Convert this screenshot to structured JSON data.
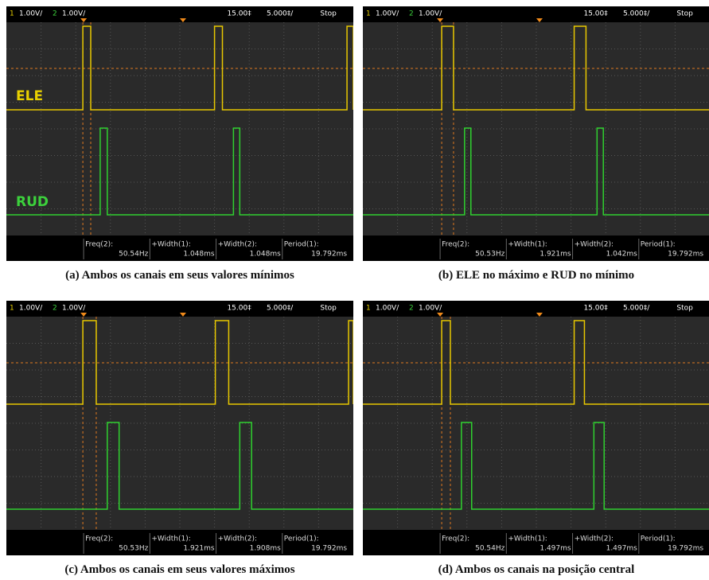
{
  "panels": [
    {
      "header": {
        "ch1": "1",
        "ch1_scale": "1.00V/",
        "ch2": "2",
        "ch2_scale": "1.00V/",
        "delay": "15.00‡",
        "timebase": "5.000‡/",
        "status": "Stop"
      },
      "labels": [
        "ELE",
        "RUD"
      ],
      "measurements": [
        {
          "label": "Freq(2):",
          "value": "50.54Hz"
        },
        {
          "label": "+Width(1):",
          "value": "1.048ms"
        },
        {
          "label": "+Width(2):",
          "value": "1.048ms"
        },
        {
          "label": "Period(1):",
          "value": "19.792ms"
        }
      ],
      "caption": "(a) Ambos os canais em seus valores mínimos"
    },
    {
      "header": {
        "ch1": "1",
        "ch1_scale": "1.00V/",
        "ch2": "2",
        "ch2_scale": "1.00V/",
        "delay": "15.00‡",
        "timebase": "5.000‡/",
        "status": "Stop"
      },
      "measurements": [
        {
          "label": "Freq(2):",
          "value": "50.53Hz"
        },
        {
          "label": "+Width(1):",
          "value": "1.921ms"
        },
        {
          "label": "+Width(2):",
          "value": "1.042ms"
        },
        {
          "label": "Period(1):",
          "value": "19.792ms"
        }
      ],
      "caption": "(b) ELE no máximo e RUD no mínimo"
    },
    {
      "header": {
        "ch1": "1",
        "ch1_scale": "1.00V/",
        "ch2": "2",
        "ch2_scale": "1.00V/",
        "delay": "15.00‡",
        "timebase": "5.000‡/",
        "status": "Stop"
      },
      "measurements": [
        {
          "label": "Freq(2):",
          "value": "50.53Hz"
        },
        {
          "label": "+Width(1):",
          "value": "1.921ms"
        },
        {
          "label": "+Width(2):",
          "value": "1.908ms"
        },
        {
          "label": "Period(1):",
          "value": "19.792ms"
        }
      ],
      "caption": "(c) Ambos os canais em seus valores máximos"
    },
    {
      "header": {
        "ch1": "1",
        "ch1_scale": "1.00V/",
        "ch2": "2",
        "ch2_scale": "1.00V/",
        "delay": "15.00‡",
        "timebase": "5.000‡/",
        "status": "Stop"
      },
      "measurements": [
        {
          "label": "Freq(2):",
          "value": "50.54Hz"
        },
        {
          "label": "+Width(1):",
          "value": "1.497ms"
        },
        {
          "label": "+Width(2):",
          "value": "1.497ms"
        },
        {
          "label": "Period(1):",
          "value": "19.792ms"
        }
      ],
      "caption": "(d) Ambos os canais na posição central"
    }
  ]
}
